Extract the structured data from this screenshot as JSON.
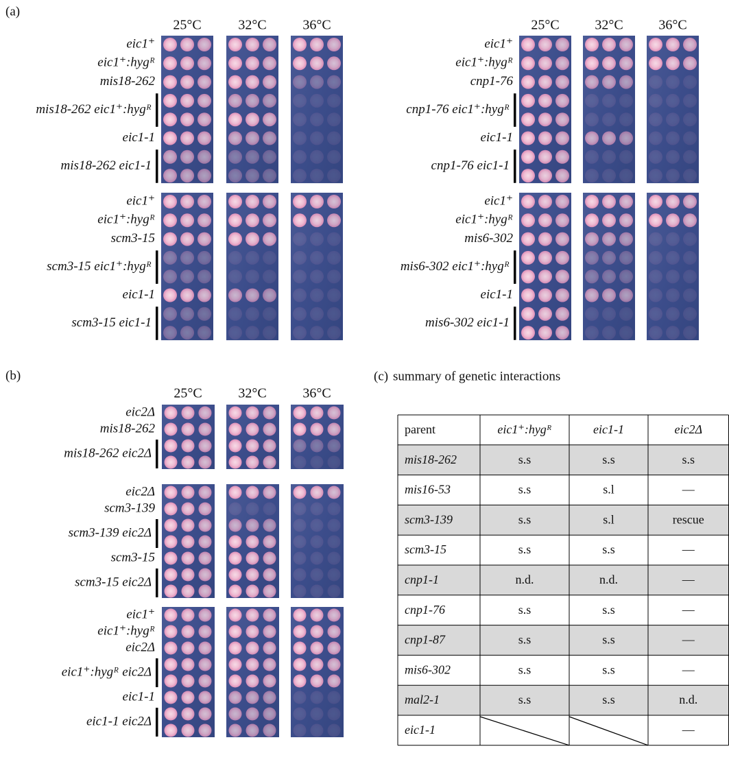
{
  "panel_a": {
    "label": "(a)",
    "columns": [
      {
        "temperatures": [
          "25°C",
          "32°C",
          "36°C"
        ],
        "blocks": [
          [
            "eic1⁺",
            "eic1⁺:hygᴿ",
            "mis18-262",
            "mis18-262 eic1⁺:hygᴿ",
            "eic1-1",
            "mis18-262 eic1-1"
          ],
          [
            "eic1⁺",
            "eic1⁺:hygᴿ",
            "scm3-15",
            "scm3-15 eic1⁺:hygᴿ",
            "eic1-1",
            "scm3-15 eic1-1"
          ]
        ]
      },
      {
        "temperatures": [
          "25°C",
          "32°C",
          "36°C"
        ],
        "blocks": [
          [
            "eic1⁺",
            "eic1⁺:hygᴿ",
            "cnp1-76",
            "cnp1-76 eic1⁺:hygᴿ",
            "eic1-1",
            "cnp1-76 eic1-1"
          ],
          [
            "eic1⁺",
            "eic1⁺:hygᴿ",
            "mis6-302",
            "mis6-302 eic1⁺:hygᴿ",
            "eic1-1",
            "mis6-302 eic1-1"
          ]
        ]
      }
    ]
  },
  "panel_b": {
    "label": "(b)",
    "temperatures": [
      "25°C",
      "32°C",
      "36°C"
    ],
    "groups": [
      [
        "eic2Δ",
        "mis18-262",
        "mis18-262 eic2Δ"
      ],
      [
        "eic2Δ",
        "scm3-139",
        "scm3-139 eic2Δ",
        "scm3-15",
        "scm3-15 eic2Δ"
      ],
      [
        "eic1⁺",
        "eic1⁺:hygᴿ",
        "eic2Δ",
        "eic1⁺:hygᴿ eic2Δ",
        "eic1-1",
        "eic1-1 eic2Δ"
      ]
    ]
  },
  "panel_c": {
    "label": "(c)",
    "title": "summary of genetic interactions",
    "table": {
      "header": [
        "parent",
        "eic1⁺:hygᴿ",
        "eic1-1",
        "eic2Δ"
      ],
      "rows": [
        [
          "mis18-262",
          "s.s",
          "s.s",
          "s.s"
        ],
        [
          "mis16-53",
          "s.s",
          "s.l",
          "—"
        ],
        [
          "scm3-139",
          "s.s",
          "s.l",
          "rescue"
        ],
        [
          "scm3-15",
          "s.s",
          "s.s",
          "—"
        ],
        [
          "cnp1-1",
          "n.d.",
          "n.d.",
          "—"
        ],
        [
          "cnp1-76",
          "s.s",
          "s.s",
          "—"
        ],
        [
          "cnp1-87",
          "s.s",
          "s.s",
          "—"
        ],
        [
          "mis6-302",
          "s.s",
          "s.s",
          "—"
        ],
        [
          "mal2-1",
          "s.s",
          "s.s",
          "n.d."
        ],
        [
          "eic1-1",
          null,
          null,
          "—"
        ]
      ]
    }
  }
}
